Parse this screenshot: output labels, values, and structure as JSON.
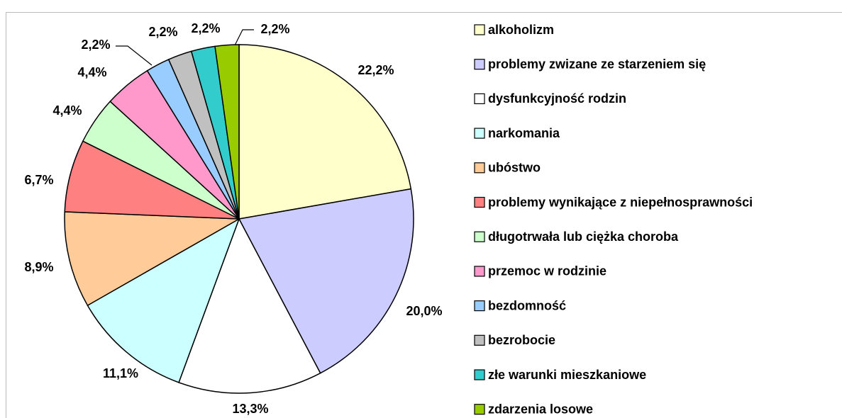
{
  "chart_data": {
    "type": "pie",
    "categories": [
      "alkoholizm",
      "problemy zwizane ze starzeniem się",
      "dysfunkcyjność rodzin",
      "narkomania",
      "ubóstwo",
      "problemy wynikające z niepełnosprawności",
      "długotrwała lub ciężka choroba",
      "przemoc w rodzinie",
      "bezdomność",
      "bezrobocie",
      "złe warunki mieszkaniowe",
      "zdarzenia losowe"
    ],
    "values": [
      22.2,
      20.0,
      13.3,
      11.1,
      8.9,
      6.7,
      4.4,
      4.4,
      2.2,
      2.2,
      2.2,
      2.2
    ],
    "value_labels": [
      "22,2%",
      "20,0%",
      "13,3%",
      "11,1%",
      "8,9%",
      "6,7%",
      "4,4%",
      "4,4%",
      "2,2%",
      "2,2%",
      "2,2%",
      "2,2%"
    ],
    "colors": [
      "#ffffcc",
      "#ccccff",
      "#ffffff",
      "#ccffff",
      "#ffcc99",
      "#ff8080",
      "#ccffcc",
      "#ff99cc",
      "#99ccff",
      "#c0c0c0",
      "#33cccc",
      "#99cc00"
    ],
    "legend": "right"
  }
}
